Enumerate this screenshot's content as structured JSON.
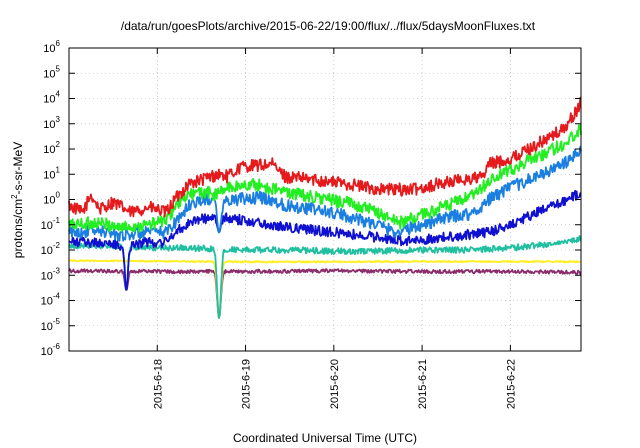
{
  "chart_data": {
    "type": "line",
    "title": "/data/run/goesPlots/archive/2015-06-22/19:00/flux/../flux/5daysMoonFluxes.txt",
    "xlabel": "Coordinated Universal Time (UTC)",
    "ylabel": {
      "pre": "protons/cm",
      "sup": "2",
      "post": "-s-sr-MeV"
    },
    "yscale": "log",
    "ylim": [
      1e-06,
      1000000.0
    ],
    "xlim_days": [
      17.0,
      22.8
    ],
    "grid": true,
    "legend": "none",
    "y_ticks": [
      {
        "v": 1e-06,
        "base": "10",
        "exp": "-6"
      },
      {
        "v": 1e-05,
        "base": "10",
        "exp": "-5"
      },
      {
        "v": 0.0001,
        "base": "10",
        "exp": "-4"
      },
      {
        "v": 0.001,
        "base": "10",
        "exp": "-3"
      },
      {
        "v": 0.01,
        "base": "10",
        "exp": "-2"
      },
      {
        "v": 0.1,
        "base": "10",
        "exp": "-1"
      },
      {
        "v": 1,
        "base": "10",
        "exp": "0"
      },
      {
        "v": 10,
        "base": "10",
        "exp": "1"
      },
      {
        "v": 100,
        "base": "10",
        "exp": "2"
      },
      {
        "v": 1000,
        "base": "10",
        "exp": "3"
      },
      {
        "v": 10000,
        "base": "10",
        "exp": "4"
      },
      {
        "v": 100000,
        "base": "10",
        "exp": "5"
      },
      {
        "v": 1000000,
        "base": "10",
        "exp": "6"
      }
    ],
    "x_ticks": [
      {
        "day": 18,
        "label": "2015-6-18"
      },
      {
        "day": 19,
        "label": "2015-6-19"
      },
      {
        "day": 20,
        "label": "2015-6-20"
      },
      {
        "day": 21,
        "label": "2015-6-21"
      },
      {
        "day": 22,
        "label": "2015-6-22"
      }
    ],
    "series": [
      {
        "color": "#e41a1c",
        "noise": 0.25,
        "points": [
          [
            17.0,
            0.6
          ],
          [
            17.15,
            0.3
          ],
          [
            17.25,
            1.5
          ],
          [
            17.35,
            0.4
          ],
          [
            17.5,
            0.8
          ],
          [
            17.7,
            0.3
          ],
          [
            17.9,
            0.5
          ],
          [
            18.1,
            0.3
          ],
          [
            18.2,
            1.0
          ],
          [
            18.35,
            4
          ],
          [
            18.5,
            6
          ],
          [
            18.6,
            8
          ],
          [
            18.7,
            10
          ],
          [
            18.8,
            8
          ],
          [
            18.95,
            20
          ],
          [
            19.3,
            25
          ],
          [
            19.45,
            8
          ],
          [
            19.8,
            6
          ],
          [
            20.2,
            4
          ],
          [
            20.5,
            2.5
          ],
          [
            20.9,
            2.5
          ],
          [
            21.3,
            5
          ],
          [
            21.7,
            8
          ],
          [
            21.75,
            25
          ],
          [
            22.0,
            40
          ],
          [
            22.3,
            150
          ],
          [
            22.6,
            600
          ],
          [
            22.75,
            3000
          ],
          [
            22.8,
            9000
          ]
        ]
      },
      {
        "color": "#22ee22",
        "noise": 0.25,
        "points": [
          [
            17.0,
            0.1
          ],
          [
            17.3,
            0.12
          ],
          [
            17.6,
            0.08
          ],
          [
            17.9,
            0.1
          ],
          [
            18.1,
            0.15
          ],
          [
            18.2,
            0.5
          ],
          [
            18.35,
            1.5
          ],
          [
            18.55,
            2
          ],
          [
            18.65,
            1.5
          ],
          [
            18.8,
            3
          ],
          [
            19.1,
            4
          ],
          [
            19.45,
            2
          ],
          [
            19.8,
            1.2
          ],
          [
            20.2,
            0.7
          ],
          [
            20.5,
            0.3
          ],
          [
            20.75,
            0.12
          ],
          [
            21.0,
            0.25
          ],
          [
            21.3,
            0.6
          ],
          [
            21.6,
            1.5
          ],
          [
            21.75,
            5
          ],
          [
            22.0,
            15
          ],
          [
            22.3,
            50
          ],
          [
            22.6,
            150
          ],
          [
            22.8,
            600
          ]
        ]
      },
      {
        "color": "#1a7fe0",
        "noise": 0.25,
        "points": [
          [
            17.0,
            0.05
          ],
          [
            17.3,
            0.06
          ],
          [
            17.6,
            0.04
          ],
          [
            17.9,
            0.05
          ],
          [
            18.1,
            0.05
          ],
          [
            18.25,
            0.2
          ],
          [
            18.4,
            0.8
          ],
          [
            18.6,
            1.0
          ],
          [
            18.75,
            0.8
          ],
          [
            18.9,
            1.0
          ],
          [
            19.2,
            1.2
          ],
          [
            19.45,
            0.6
          ],
          [
            19.8,
            0.4
          ],
          [
            20.2,
            0.2
          ],
          [
            20.5,
            0.1
          ],
          [
            20.7,
            0.05
          ],
          [
            21.0,
            0.1
          ],
          [
            21.3,
            0.2
          ],
          [
            21.6,
            0.3
          ],
          [
            21.75,
            1.0
          ],
          [
            22.0,
            3
          ],
          [
            22.3,
            8
          ],
          [
            22.6,
            25
          ],
          [
            22.8,
            80
          ]
        ]
      },
      {
        "color": "#1010d0",
        "noise": 0.2,
        "points": [
          [
            17.0,
            0.02
          ],
          [
            17.3,
            0.02
          ],
          [
            17.6,
            0.015
          ],
          [
            17.9,
            0.02
          ],
          [
            18.1,
            0.02
          ],
          [
            18.2,
            0.05
          ],
          [
            18.4,
            0.15
          ],
          [
            18.65,
            0.2
          ],
          [
            19.0,
            0.15
          ],
          [
            19.3,
            0.1
          ],
          [
            19.6,
            0.07
          ],
          [
            20.0,
            0.05
          ],
          [
            20.4,
            0.035
          ],
          [
            20.8,
            0.022
          ],
          [
            21.2,
            0.03
          ],
          [
            21.5,
            0.04
          ],
          [
            21.75,
            0.05
          ],
          [
            22.0,
            0.1
          ],
          [
            22.3,
            0.3
          ],
          [
            22.6,
            0.8
          ],
          [
            22.8,
            2
          ]
        ]
      },
      {
        "color": "#1fbf9f",
        "noise": 0.12,
        "points": [
          [
            17.0,
            0.015
          ],
          [
            17.5,
            0.015
          ],
          [
            18.0,
            0.012
          ],
          [
            18.3,
            0.012
          ],
          [
            18.7,
            0.011
          ],
          [
            19.0,
            0.01
          ],
          [
            19.5,
            0.01
          ],
          [
            20.0,
            0.009
          ],
          [
            20.5,
            0.009
          ],
          [
            21.0,
            0.01
          ],
          [
            21.5,
            0.01
          ],
          [
            22.0,
            0.012
          ],
          [
            22.5,
            0.018
          ],
          [
            22.8,
            0.028
          ]
        ]
      },
      {
        "color": "#ffee22",
        "noise": 0.03,
        "points": [
          [
            17.0,
            0.0038
          ],
          [
            18.0,
            0.0036
          ],
          [
            19.0,
            0.0034
          ],
          [
            20.0,
            0.0034
          ],
          [
            21.0,
            0.0035
          ],
          [
            22.0,
            0.0035
          ],
          [
            22.8,
            0.0034
          ]
        ]
      },
      {
        "color": "#8b2d6b",
        "noise": 0.07,
        "points": [
          [
            17.0,
            0.0015
          ],
          [
            18.0,
            0.0014
          ],
          [
            19.0,
            0.0014
          ],
          [
            20.0,
            0.0015
          ],
          [
            21.0,
            0.0014
          ],
          [
            22.0,
            0.0014
          ],
          [
            22.8,
            0.0013
          ]
        ]
      }
    ],
    "dips": [
      {
        "day": 17.65,
        "width": 0.025,
        "value": 0.00025,
        "series": [
          6,
          4,
          3
        ]
      },
      {
        "day": 18.7,
        "width": 0.03,
        "value": 2e-05,
        "series": [
          6,
          5,
          4
        ]
      },
      {
        "day": 18.7,
        "width": 0.03,
        "value": 0.05,
        "series": [
          3,
          2
        ]
      }
    ]
  }
}
